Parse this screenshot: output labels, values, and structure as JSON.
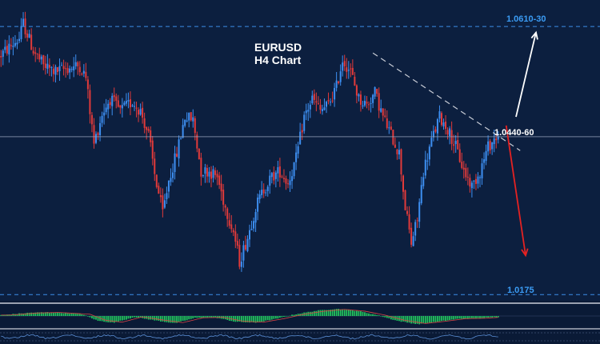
{
  "chart_data": {
    "type": "candlestick",
    "title": "EURUSD",
    "subtitle": "H4 Chart",
    "colors": {
      "background": "#0c1f3f",
      "bull": "#3d8ef0",
      "bear": "#e03a3a",
      "level": "#3b8ee8",
      "level_text": "#3b9cf5",
      "trend": "#c8ccd6",
      "forecast_up": "#ffffff",
      "forecast_down": "#e52222",
      "macd_bar": "#22c55e"
    },
    "price_range": [
      1.017,
      1.064
    ],
    "levels": [
      {
        "price": 1.062,
        "label": "1.0610-30",
        "style": "dashed"
      },
      {
        "price": 1.0175,
        "label": "1.0175",
        "style": "dashed"
      },
      {
        "price": 1.0437,
        "label": "",
        "style": "solid"
      }
    ],
    "forecast_up": {
      "label": "1.0440-60",
      "target": 1.061
    },
    "forecast_down": {
      "target": 1.024
    },
    "trendline": {
      "start_index": 0.745,
      "start_price": 1.0576,
      "end_index": 1.04,
      "end_price": 1.0414
    },
    "path": [
      [
        0,
        1.057
      ],
      [
        5,
        1.0585
      ],
      [
        10,
        1.06
      ],
      [
        12,
        1.0625
      ],
      [
        17,
        1.058
      ],
      [
        22,
        1.0555
      ],
      [
        28,
        1.0545
      ],
      [
        33,
        1.055
      ],
      [
        40,
        1.0555
      ],
      [
        43,
        1.0535
      ],
      [
        47,
        1.0425
      ],
      [
        51,
        1.0475
      ],
      [
        55,
        1.05
      ],
      [
        60,
        1.048
      ],
      [
        66,
        1.0495
      ],
      [
        70,
        1.048
      ],
      [
        74,
        1.044
      ],
      [
        77,
        1.0375
      ],
      [
        81,
        1.031
      ],
      [
        84,
        1.0365
      ],
      [
        88,
        1.041
      ],
      [
        92,
        1.047
      ],
      [
        96,
        1.0465
      ],
      [
        100,
        1.038
      ],
      [
        104,
        1.038
      ],
      [
        108,
        1.037
      ],
      [
        112,
        1.032
      ],
      [
        116,
        1.028
      ],
      [
        119,
        1.023
      ],
      [
        123,
        1.027
      ],
      [
        127,
        1.032
      ],
      [
        131,
        1.035
      ],
      [
        135,
        1.037
      ],
      [
        139,
        1.038
      ],
      [
        143,
        1.036
      ],
      [
        147,
        1.04
      ],
      [
        151,
        1.047
      ],
      [
        155,
        1.05
      ],
      [
        159,
        1.048
      ],
      [
        163,
        1.049
      ],
      [
        167,
        1.052
      ],
      [
        170,
        1.0565
      ],
      [
        174,
        1.0545
      ],
      [
        178,
        1.05
      ],
      [
        182,
        1.049
      ],
      [
        186,
        1.051
      ],
      [
        190,
        1.047
      ],
      [
        194,
        1.044
      ],
      [
        198,
        1.041
      ],
      [
        201,
        1.032
      ],
      [
        204,
        1.026
      ],
      [
        207,
        1.03
      ],
      [
        210,
        1.038
      ],
      [
        214,
        1.043
      ],
      [
        218,
        1.047
      ],
      [
        222,
        1.045
      ],
      [
        226,
        1.042
      ],
      [
        230,
        1.038
      ],
      [
        234,
        1.0355
      ],
      [
        238,
        1.038
      ],
      [
        242,
        1.042
      ],
      [
        246,
        1.0437
      ]
    ],
    "oscillator": [
      [
        0,
        0.1
      ],
      [
        15,
        0.35
      ],
      [
        25,
        0.4
      ],
      [
        40,
        0.2
      ],
      [
        48,
        -0.5
      ],
      [
        56,
        -0.7
      ],
      [
        66,
        -0.1
      ],
      [
        76,
        -0.45
      ],
      [
        86,
        -0.75
      ],
      [
        96,
        -0.2
      ],
      [
        106,
        -0.15
      ],
      [
        116,
        -0.6
      ],
      [
        126,
        -0.7
      ],
      [
        136,
        -0.3
      ],
      [
        146,
        0.2
      ],
      [
        156,
        0.55
      ],
      [
        166,
        0.75
      ],
      [
        176,
        0.55
      ],
      [
        186,
        0.1
      ],
      [
        196,
        -0.5
      ],
      [
        206,
        -0.85
      ],
      [
        216,
        -0.6
      ],
      [
        226,
        -0.3
      ],
      [
        236,
        -0.25
      ],
      [
        246,
        -0.1
      ]
    ]
  }
}
